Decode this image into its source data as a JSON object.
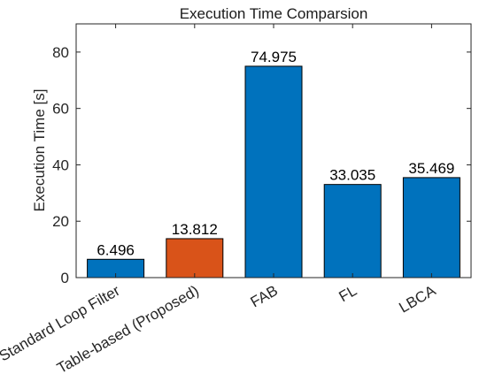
{
  "chart_data": {
    "type": "bar",
    "title": "Execution Time Comparsion",
    "xlabel": "",
    "ylabel": "Execution Time [s]",
    "ylim": [
      0,
      90
    ],
    "yticks": [
      0,
      20,
      40,
      60,
      80
    ],
    "categories": [
      "Standard Loop Filter",
      "Table-based (Proposed)",
      "FAB",
      "FL",
      "LBCA"
    ],
    "values": [
      6.496,
      13.812,
      74.975,
      33.035,
      35.469
    ],
    "data_labels": [
      "6.496",
      "13.812",
      "74.975",
      "33.035",
      "35.469"
    ],
    "bar_colors": [
      "#0072BD",
      "#D95319",
      "#0072BD",
      "#0072BD",
      "#0072BD"
    ],
    "grid": false,
    "legend": "none"
  }
}
